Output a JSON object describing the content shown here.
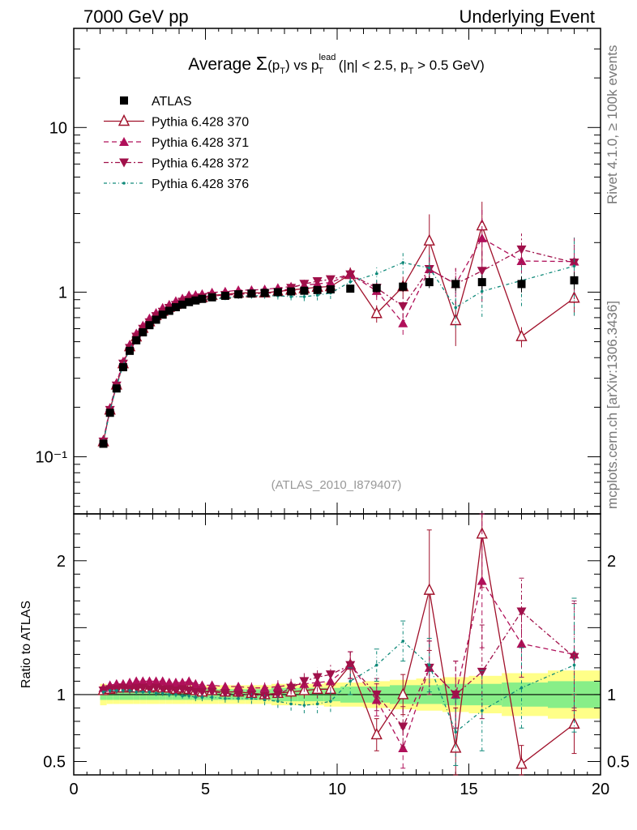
{
  "header": {
    "left": "7000 GeV pp",
    "right": "Underlying Event"
  },
  "side": {
    "rivet": "Rivet 4.1.0, ≥ 100k events",
    "mcplots": "mcplots.cern.ch [arXiv:1306.3436]"
  },
  "chart_data": {
    "type": "line",
    "title": "Average Σ(p_T) vs p_T^lead (|η| < 2.5, p_T > 0.5 GeV)",
    "title_parts": {
      "t1": "Average ",
      "sigma": "Σ",
      "t2": "(p",
      "sub1": "T",
      "t3": ") vs p",
      "sup": "lead",
      "sub2": "T",
      "t4": " (|η| < 2.5, p",
      "sub3": "T",
      "t5": " > 0.5 GeV)"
    },
    "analysis_label": "(ATLAS_2010_I879407)",
    "xlabel": "",
    "ylabel_main": "",
    "ylabel_ratio": "Ratio to ATLAS",
    "xlim": [
      0,
      20
    ],
    "ylim_main": [
      0.045,
      40
    ],
    "ylim_ratio": [
      0.4,
      2.35
    ],
    "yscale_main": "log",
    "x_ticks": [
      "0",
      "5",
      "10",
      "15",
      "20"
    ],
    "y_ticks_main": [
      {
        "value": 10,
        "label": "10"
      },
      {
        "value": 1,
        "label": "1"
      },
      {
        "value": 0.1,
        "label": "10⁻¹"
      }
    ],
    "y_ticks_ratio": [
      {
        "value": 2,
        "label": "2"
      },
      {
        "value": 1,
        "label": "1"
      },
      {
        "value": 0.5,
        "label": "0.5"
      }
    ],
    "legend_position": "top-left",
    "x": [
      1.125,
      1.375,
      1.625,
      1.875,
      2.125,
      2.375,
      2.625,
      2.875,
      3.125,
      3.375,
      3.625,
      3.875,
      4.125,
      4.375,
      4.625,
      4.875,
      5.25,
      5.75,
      6.25,
      6.75,
      7.25,
      7.75,
      8.25,
      8.75,
      9.25,
      9.75,
      10.5,
      11.5,
      12.5,
      13.5,
      14.5,
      15.5,
      17.0,
      19.0
    ],
    "data": {
      "name": "ATLAS",
      "values": [
        0.12,
        0.185,
        0.26,
        0.35,
        0.44,
        0.51,
        0.57,
        0.63,
        0.68,
        0.73,
        0.77,
        0.81,
        0.84,
        0.87,
        0.89,
        0.91,
        0.93,
        0.95,
        0.97,
        0.98,
        0.99,
        1.0,
        1.01,
        1.02,
        1.03,
        1.04,
        1.05,
        1.06,
        1.08,
        1.15,
        1.12,
        1.15,
        1.12,
        1.18
      ],
      "rel_err": [
        0.02,
        0.02,
        0.02,
        0.02,
        0.02,
        0.02,
        0.02,
        0.02,
        0.02,
        0.02,
        0.02,
        0.02,
        0.02,
        0.02,
        0.02,
        0.02,
        0.03,
        0.03,
        0.03,
        0.03,
        0.03,
        0.03,
        0.04,
        0.04,
        0.04,
        0.05,
        0.05,
        0.06,
        0.07,
        0.08,
        0.09,
        0.1,
        0.11,
        0.12
      ],
      "band_stat": [
        0.04,
        0.04,
        0.04,
        0.04,
        0.04,
        0.04,
        0.04,
        0.04,
        0.04,
        0.04,
        0.04,
        0.04,
        0.04,
        0.04,
        0.04,
        0.04,
        0.04,
        0.04,
        0.04,
        0.04,
        0.04,
        0.05,
        0.05,
        0.05,
        0.05,
        0.05,
        0.06,
        0.06,
        0.07,
        0.07,
        0.08,
        0.08,
        0.09,
        0.1
      ],
      "band_tot": [
        0.08,
        0.07,
        0.07,
        0.07,
        0.07,
        0.07,
        0.07,
        0.07,
        0.07,
        0.07,
        0.07,
        0.07,
        0.07,
        0.07,
        0.07,
        0.07,
        0.07,
        0.07,
        0.07,
        0.07,
        0.07,
        0.08,
        0.08,
        0.08,
        0.08,
        0.09,
        0.09,
        0.1,
        0.11,
        0.12,
        0.13,
        0.14,
        0.16,
        0.18
      ]
    },
    "series": [
      {
        "name": "Pythia 6.428 370",
        "color": "#a0102a",
        "marker": "triangle-open",
        "dash": "",
        "ratio": [
          1.03,
          1.04,
          1.05,
          1.05,
          1.06,
          1.05,
          1.06,
          1.05,
          1.06,
          1.05,
          1.05,
          1.04,
          1.05,
          1.04,
          1.03,
          1.02,
          1.03,
          1.02,
          1.02,
          1.01,
          1.0,
          1.01,
          1.02,
          1.03,
          1.04,
          1.04,
          1.22,
          0.7,
          1.0,
          1.78,
          0.6,
          2.2,
          0.48,
          0.78
        ],
        "err": [
          0.02,
          0.02,
          0.02,
          0.02,
          0.02,
          0.02,
          0.02,
          0.02,
          0.02,
          0.02,
          0.02,
          0.02,
          0.02,
          0.02,
          0.03,
          0.03,
          0.03,
          0.03,
          0.03,
          0.04,
          0.04,
          0.05,
          0.05,
          0.06,
          0.07,
          0.08,
          0.1,
          0.12,
          0.15,
          0.45,
          0.3,
          0.4,
          0.14,
          0.22
        ]
      },
      {
        "name": "Pythia 6.428 371",
        "color": "#b0105a",
        "marker": "triangle-up",
        "dash": "6,4",
        "ratio": [
          1.05,
          1.07,
          1.08,
          1.08,
          1.09,
          1.1,
          1.1,
          1.1,
          1.1,
          1.1,
          1.09,
          1.09,
          1.09,
          1.1,
          1.08,
          1.07,
          1.07,
          1.06,
          1.06,
          1.05,
          1.05,
          1.06,
          1.07,
          1.08,
          1.09,
          1.1,
          1.22,
          0.96,
          0.6,
          1.2,
          1.0,
          1.85,
          1.38,
          1.3
        ],
        "err": [
          0.02,
          0.02,
          0.02,
          0.02,
          0.02,
          0.02,
          0.02,
          0.02,
          0.02,
          0.02,
          0.02,
          0.02,
          0.02,
          0.02,
          0.03,
          0.03,
          0.03,
          0.03,
          0.03,
          0.04,
          0.04,
          0.05,
          0.05,
          0.06,
          0.07,
          0.08,
          0.1,
          0.12,
          0.15,
          0.2,
          0.25,
          0.5,
          0.25,
          0.4
        ]
      },
      {
        "name": "Pythia 6.428 372",
        "color": "#a0104a",
        "marker": "triangle-down",
        "dash": "6,3,2,3",
        "ratio": [
          1.03,
          1.04,
          1.04,
          1.05,
          1.04,
          1.05,
          1.05,
          1.04,
          1.05,
          1.04,
          1.04,
          1.03,
          1.04,
          1.03,
          1.02,
          1.02,
          1.02,
          1.01,
          1.0,
          1.0,
          0.99,
          1.0,
          1.05,
          1.1,
          1.13,
          1.15,
          1.22,
          1.0,
          0.76,
          1.2,
          1.0,
          1.17,
          1.62,
          1.28
        ],
        "err": [
          0.02,
          0.02,
          0.02,
          0.02,
          0.02,
          0.02,
          0.02,
          0.02,
          0.02,
          0.02,
          0.02,
          0.02,
          0.02,
          0.02,
          0.03,
          0.03,
          0.03,
          0.03,
          0.03,
          0.04,
          0.04,
          0.05,
          0.05,
          0.06,
          0.07,
          0.08,
          0.1,
          0.12,
          0.15,
          0.2,
          0.25,
          0.35,
          0.25,
          0.4
        ]
      },
      {
        "name": "Pythia 6.428 376",
        "color": "#108a7a",
        "marker": "dot",
        "dash": "4,3,1,3",
        "ratio": [
          1.02,
          1.03,
          1.03,
          1.03,
          1.03,
          1.02,
          1.02,
          1.02,
          1.01,
          1.01,
          1.0,
          1.0,
          0.99,
          0.99,
          0.98,
          0.98,
          0.98,
          0.97,
          0.97,
          0.97,
          0.96,
          0.95,
          0.93,
          0.92,
          0.93,
          0.95,
          1.1,
          1.22,
          1.4,
          1.22,
          0.72,
          0.88,
          1.05,
          1.22
        ],
        "err": [
          0.02,
          0.02,
          0.02,
          0.02,
          0.02,
          0.02,
          0.02,
          0.02,
          0.02,
          0.02,
          0.02,
          0.02,
          0.02,
          0.02,
          0.03,
          0.03,
          0.03,
          0.03,
          0.03,
          0.04,
          0.04,
          0.05,
          0.05,
          0.06,
          0.07,
          0.08,
          0.1,
          0.12,
          0.15,
          0.2,
          0.25,
          0.3,
          0.3,
          0.5
        ]
      }
    ]
  }
}
